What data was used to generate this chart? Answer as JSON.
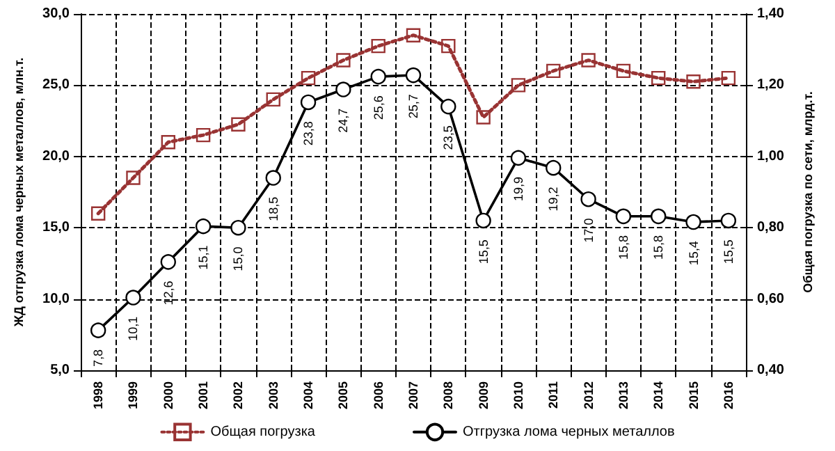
{
  "chart_data": {
    "type": "line",
    "ylabel": "ЖД отгрузка лома черных металлов, млн.т.",
    "y2label": "Общая погрузка по сети, млрд.т.",
    "categories": [
      "1998",
      "1999",
      "2000",
      "2001",
      "2002",
      "2003",
      "2004",
      "2005",
      "2006",
      "2007",
      "2008",
      "2009",
      "2010",
      "2011",
      "2012",
      "2013",
      "2014",
      "2015",
      "2016"
    ],
    "series": [
      {
        "name": "Общая погрузка",
        "color": "#993333",
        "axis": "y2",
        "marker": "square",
        "line_style": "dotted",
        "values": [
          0.84,
          0.94,
          1.04,
          1.06,
          1.09,
          1.16,
          1.22,
          1.27,
          1.31,
          1.34,
          1.31,
          1.11,
          1.2,
          1.24,
          1.27,
          1.24,
          1.22,
          1.21,
          1.22
        ]
      },
      {
        "name": "Отгрузка лома черных металлов",
        "color": "#000000",
        "marker": "circle",
        "line_style": "solid",
        "values": [
          7.8,
          10.1,
          12.6,
          15.1,
          15.0,
          18.5,
          23.8,
          24.7,
          25.6,
          25.7,
          23.5,
          15.5,
          19.9,
          19.2,
          17.0,
          15.8,
          15.8,
          15.4,
          15.5
        ],
        "value_labels": [
          "7,8",
          "10,1",
          "12,6",
          "15,1",
          "15,0",
          "18,5",
          "23,8",
          "24,7",
          "25,6",
          "25,7",
          "23,5",
          "15,5",
          "19,9",
          "19,2",
          "17,0",
          "15,8",
          "15,8",
          "15,4",
          "15,5"
        ]
      }
    ],
    "ylim": [
      5,
      30
    ],
    "yticks": [
      {
        "value": 5,
        "label": "5,0"
      },
      {
        "value": 10,
        "label": "10,0"
      },
      {
        "value": 15,
        "label": "15,0"
      },
      {
        "value": 20,
        "label": "20,0"
      },
      {
        "value": 25,
        "label": "25,0"
      },
      {
        "value": 30,
        "label": "30,0"
      }
    ],
    "y2lim": [
      0.4,
      1.4
    ],
    "y2ticks": [
      {
        "value": 0.4,
        "label": "0,40"
      },
      {
        "value": 0.6,
        "label": "0,60"
      },
      {
        "value": 0.8,
        "label": "0,80"
      },
      {
        "value": 1.0,
        "label": "1,00"
      },
      {
        "value": 1.2,
        "label": "1,20"
      },
      {
        "value": 1.4,
        "label": "1,40"
      }
    ],
    "grid": true,
    "legend": "bottom"
  }
}
